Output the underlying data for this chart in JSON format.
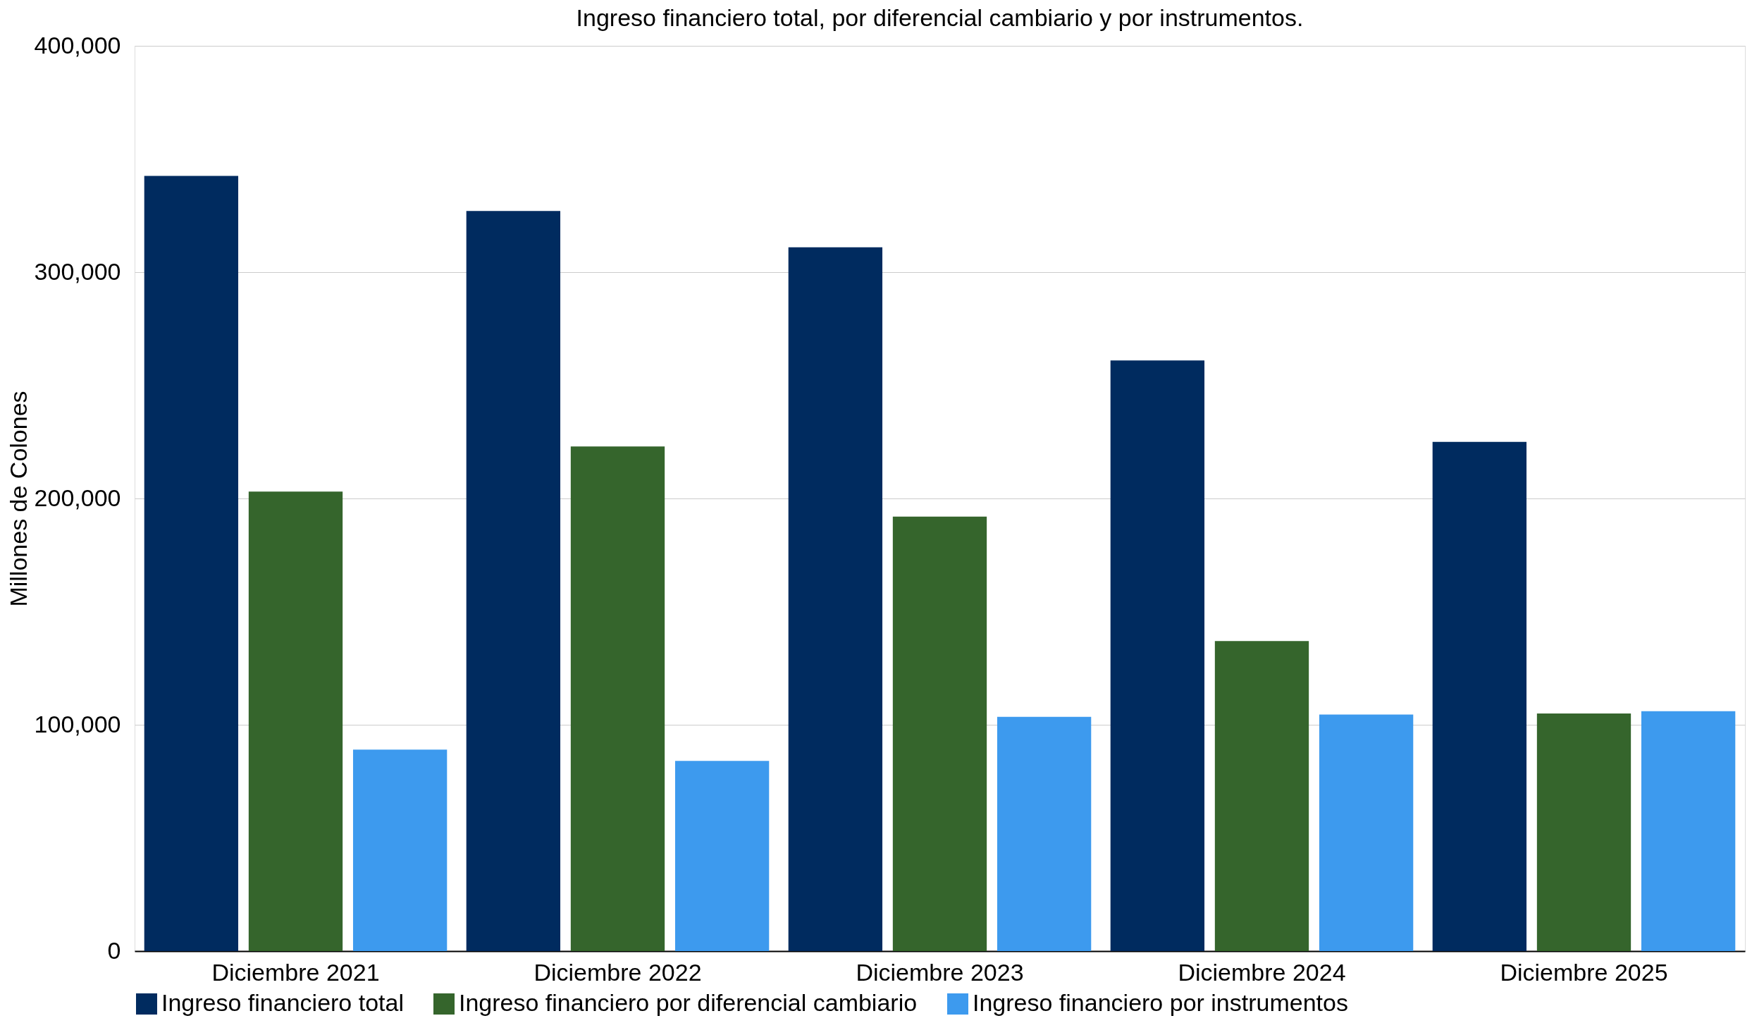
{
  "chart_data": {
    "type": "bar",
    "title": "Ingreso financiero total, por diferencial cambiario y por instrumentos.",
    "ylabel": "Millones de Colones",
    "categories": [
      "Diciembre 2021",
      "Diciembre 2022",
      "Diciembre 2023",
      "Diciembre 2024",
      "Diciembre 2025"
    ],
    "series": [
      {
        "name": "Ingreso financiero total",
        "color": "#002b5f",
        "values": [
          342500,
          327000,
          311000,
          261000,
          225000
        ]
      },
      {
        "name": "Ingreso financiero por diferencial cambiario",
        "color": "#35652c",
        "values": [
          203000,
          223000,
          192000,
          137000,
          105000
        ]
      },
      {
        "name": "Ingreso financiero por instrumentos",
        "color": "#3d9aee",
        "values": [
          89000,
          84000,
          103500,
          104500,
          106000
        ]
      }
    ],
    "ylim": [
      0,
      400000
    ],
    "yticks": [
      0,
      {
        "value": 100000,
        "label": "100,000"
      },
      {
        "value": 200000,
        "label": "200,000"
      },
      {
        "value": 300000,
        "label": "300,000"
      },
      {
        "value": 400000,
        "label": "400,000"
      }
    ],
    "grid": "y",
    "legend": "bottom"
  }
}
